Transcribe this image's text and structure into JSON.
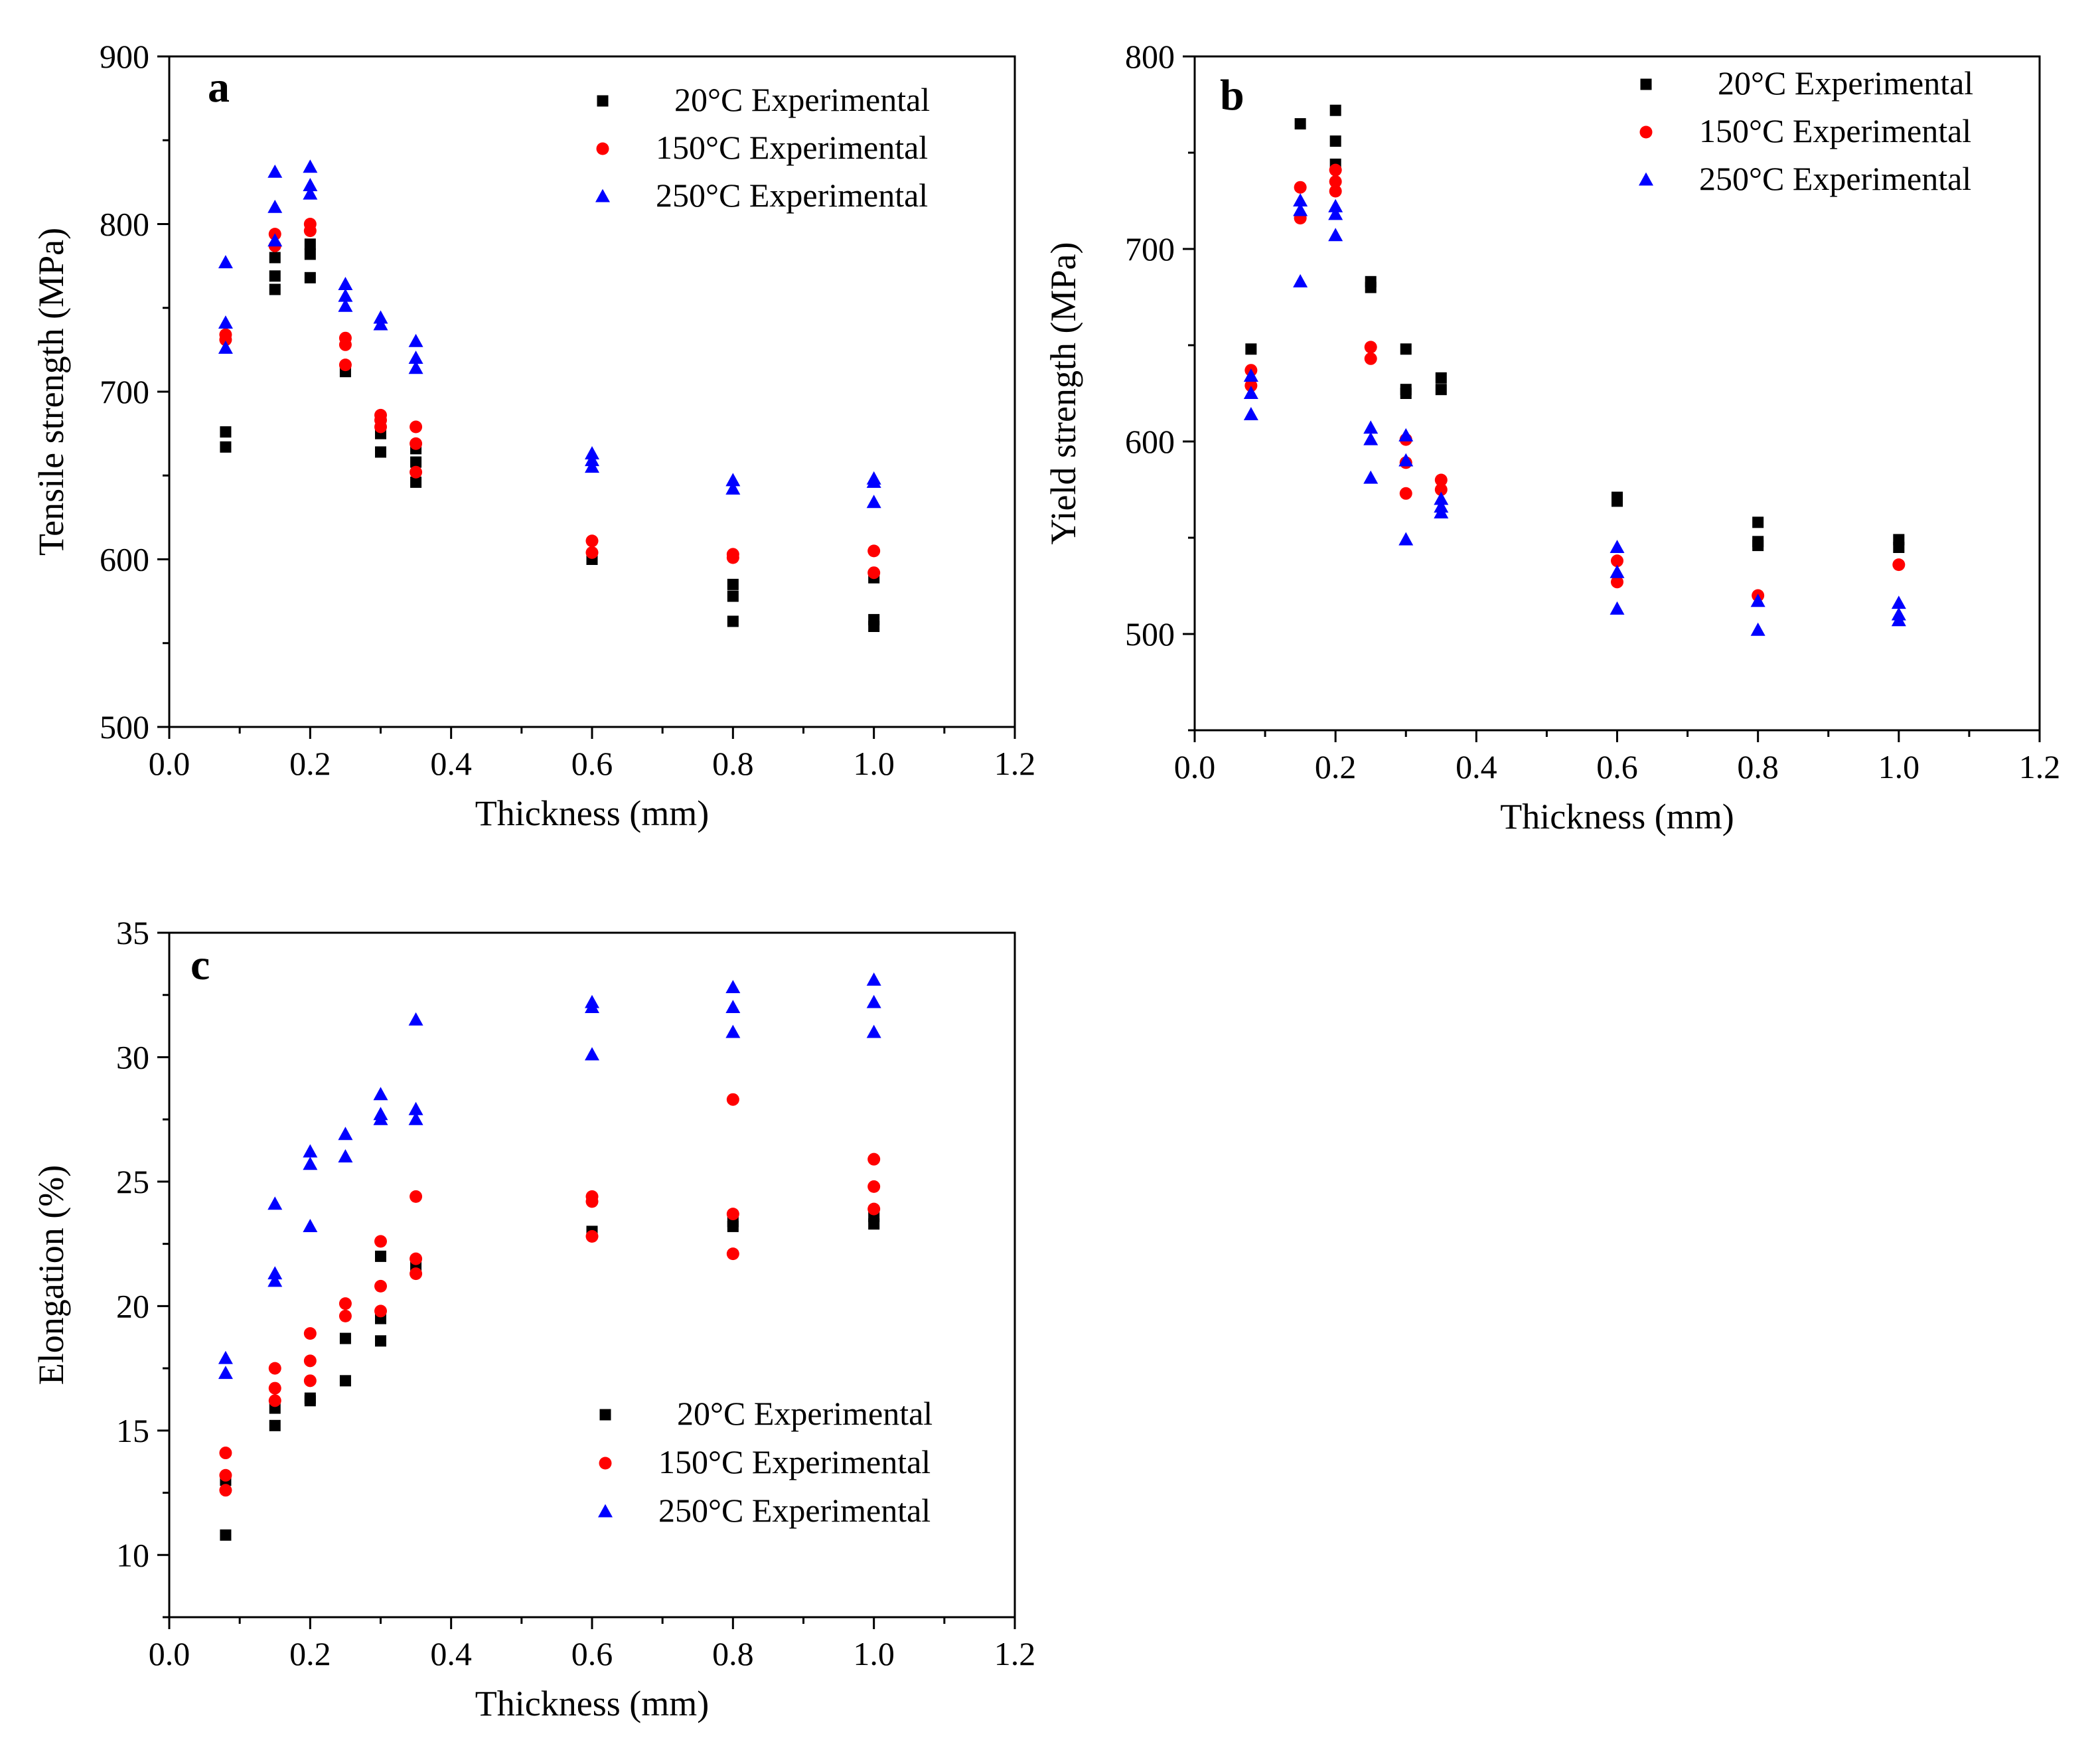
{
  "figure": {
    "series_names": [
      "20°C Experimental",
      "150°C Experimental",
      "250°C Experimental"
    ]
  },
  "chart_data": [
    {
      "type": "scatter",
      "panel": "a",
      "xlabel": "Thickness (mm)",
      "ylabel": "Tensile strength (MPa)",
      "xlim": [
        0.0,
        1.2
      ],
      "ylim": [
        500,
        900
      ],
      "xticks": [
        "0.0",
        "0.2",
        "0.4",
        "0.6",
        "0.8",
        "1.0",
        "1.2"
      ],
      "yticks": [
        "500",
        "600",
        "700",
        "800",
        "900"
      ],
      "legend_position": "top-right",
      "series": [
        {
          "name": "20°C Experimental",
          "color": "#000000",
          "marker": "square",
          "x": [
            0.08,
            0.08,
            0.15,
            0.15,
            0.15,
            0.2,
            0.2,
            0.2,
            0.25,
            0.3,
            0.3,
            0.35,
            0.35,
            0.35,
            0.6,
            0.8,
            0.8,
            0.8,
            1.0,
            1.0,
            1.0
          ],
          "y": [
            667,
            676,
            761,
            769,
            780,
            768,
            782,
            788,
            712,
            664,
            675,
            646,
            658,
            666,
            600,
            563,
            578,
            585,
            560,
            564,
            589
          ]
        },
        {
          "name": "150°C Experimental",
          "color": "#ff0000",
          "marker": "circle",
          "x": [
            0.08,
            0.08,
            0.15,
            0.15,
            0.2,
            0.2,
            0.25,
            0.25,
            0.25,
            0.3,
            0.3,
            0.3,
            0.35,
            0.35,
            0.35,
            0.6,
            0.6,
            0.8,
            0.8,
            1.0,
            1.0
          ],
          "y": [
            731,
            734,
            787,
            794,
            796,
            800,
            716,
            728,
            732,
            679,
            683,
            686,
            652,
            669,
            679,
            604,
            611,
            601,
            603,
            592,
            605
          ]
        },
        {
          "name": "250°C Experimental",
          "color": "#0000ff",
          "marker": "triangle",
          "x": [
            0.08,
            0.08,
            0.08,
            0.15,
            0.15,
            0.15,
            0.2,
            0.2,
            0.2,
            0.25,
            0.25,
            0.25,
            0.3,
            0.3,
            0.35,
            0.35,
            0.35,
            0.6,
            0.6,
            0.6,
            0.8,
            0.8,
            1.0,
            1.0,
            1.0
          ],
          "y": [
            726,
            741,
            777,
            790,
            810,
            831,
            818,
            823,
            834,
            751,
            757,
            764,
            740,
            744,
            714,
            720,
            730,
            655,
            659,
            663,
            642,
            647,
            634,
            646,
            648
          ]
        }
      ]
    },
    {
      "type": "scatter",
      "panel": "b",
      "xlabel": "Thickness (mm)",
      "ylabel": "Yield strength (MPa)",
      "xlim": [
        0.0,
        1.2
      ],
      "ylim": [
        450,
        800
      ],
      "xticks": [
        "0.0",
        "0.2",
        "0.4",
        "0.6",
        "0.8",
        "1.0",
        "1.2"
      ],
      "yticks": [
        "500",
        "600",
        "700",
        "800"
      ],
      "legend_position": "top-right",
      "series": [
        {
          "name": "20°C Experimental",
          "color": "#000000",
          "marker": "square",
          "x": [
            0.08,
            0.15,
            0.2,
            0.2,
            0.2,
            0.25,
            0.25,
            0.3,
            0.3,
            0.3,
            0.35,
            0.35,
            0.6,
            0.6,
            0.8,
            0.8,
            0.8,
            1.0,
            1.0
          ],
          "y": [
            648,
            765,
            744,
            756,
            772,
            680,
            683,
            625,
            627,
            648,
            627,
            633,
            569,
            571,
            546,
            548,
            558,
            545,
            549
          ]
        },
        {
          "name": "150°C Experimental",
          "color": "#ff0000",
          "marker": "circle",
          "x": [
            0.08,
            0.08,
            0.15,
            0.15,
            0.2,
            0.2,
            0.2,
            0.25,
            0.25,
            0.3,
            0.3,
            0.3,
            0.35,
            0.35,
            0.6,
            0.6,
            0.8,
            1.0
          ],
          "y": [
            629,
            637,
            716,
            732,
            730,
            735,
            741,
            643,
            649,
            573,
            589,
            601,
            575,
            580,
            527,
            538,
            520,
            536
          ]
        },
        {
          "name": "250°C Experimental",
          "color": "#0000ff",
          "marker": "triangle",
          "x": [
            0.08,
            0.08,
            0.08,
            0.15,
            0.15,
            0.15,
            0.2,
            0.2,
            0.2,
            0.25,
            0.25,
            0.25,
            0.3,
            0.3,
            0.3,
            0.35,
            0.35,
            0.35,
            0.6,
            0.6,
            0.6,
            0.8,
            0.8,
            1.0,
            1.0,
            1.0
          ],
          "y": [
            614,
            625,
            634,
            683,
            720,
            725,
            707,
            718,
            722,
            581,
            601,
            607,
            549,
            590,
            603,
            563,
            566,
            570,
            513,
            532,
            545,
            502,
            517,
            507,
            510,
            516
          ]
        }
      ]
    },
    {
      "type": "scatter",
      "panel": "c",
      "xlabel": "Thickness (mm)",
      "ylabel": "Elongation (%)",
      "xlim": [
        0.0,
        1.2
      ],
      "ylim": [
        7.5,
        35
      ],
      "xticks": [
        "0.0",
        "0.2",
        "0.4",
        "0.6",
        "0.8",
        "1.0",
        "1.2"
      ],
      "yticks": [
        "10",
        "15",
        "20",
        "25",
        "30",
        "35"
      ],
      "legend_position": "bottom-right",
      "series": [
        {
          "name": "20°C Experimental",
          "color": "#000000",
          "marker": "square",
          "x": [
            0.08,
            0.08,
            0.15,
            0.15,
            0.2,
            0.2,
            0.25,
            0.25,
            0.3,
            0.3,
            0.3,
            0.35,
            0.6,
            0.8,
            0.8,
            1.0,
            1.0
          ],
          "y": [
            10.8,
            13.0,
            15.2,
            15.9,
            16.2,
            16.3,
            17.0,
            18.7,
            18.6,
            19.5,
            22.0,
            21.6,
            23.0,
            23.2,
            23.4,
            23.3,
            23.6
          ]
        },
        {
          "name": "150°C Experimental",
          "color": "#ff0000",
          "marker": "circle",
          "x": [
            0.08,
            0.08,
            0.08,
            0.15,
            0.15,
            0.15,
            0.2,
            0.2,
            0.2,
            0.25,
            0.25,
            0.3,
            0.3,
            0.3,
            0.35,
            0.35,
            0.35,
            0.6,
            0.6,
            0.6,
            0.8,
            0.8,
            0.8,
            1.0,
            1.0,
            1.0
          ],
          "y": [
            12.6,
            13.2,
            14.1,
            16.2,
            16.7,
            17.5,
            17.0,
            17.8,
            18.9,
            19.6,
            20.1,
            19.8,
            20.8,
            22.6,
            21.3,
            21.9,
            24.4,
            22.8,
            24.2,
            24.4,
            22.1,
            23.7,
            28.3,
            23.9,
            24.8,
            25.9
          ]
        },
        {
          "name": "250°C Experimental",
          "color": "#0000ff",
          "marker": "triangle",
          "x": [
            0.08,
            0.08,
            0.15,
            0.15,
            0.15,
            0.2,
            0.2,
            0.2,
            0.25,
            0.25,
            0.3,
            0.3,
            0.3,
            0.35,
            0.35,
            0.35,
            0.6,
            0.6,
            0.6,
            0.8,
            0.8,
            0.8,
            1.0,
            1.0,
            1.0
          ],
          "y": [
            17.3,
            17.9,
            21.0,
            21.3,
            24.1,
            23.2,
            25.7,
            26.2,
            26.0,
            26.9,
            27.5,
            27.7,
            28.5,
            27.5,
            27.9,
            31.5,
            30.1,
            32.0,
            32.2,
            31.0,
            32.0,
            32.8,
            31.0,
            32.2,
            33.1
          ]
        }
      ]
    }
  ]
}
